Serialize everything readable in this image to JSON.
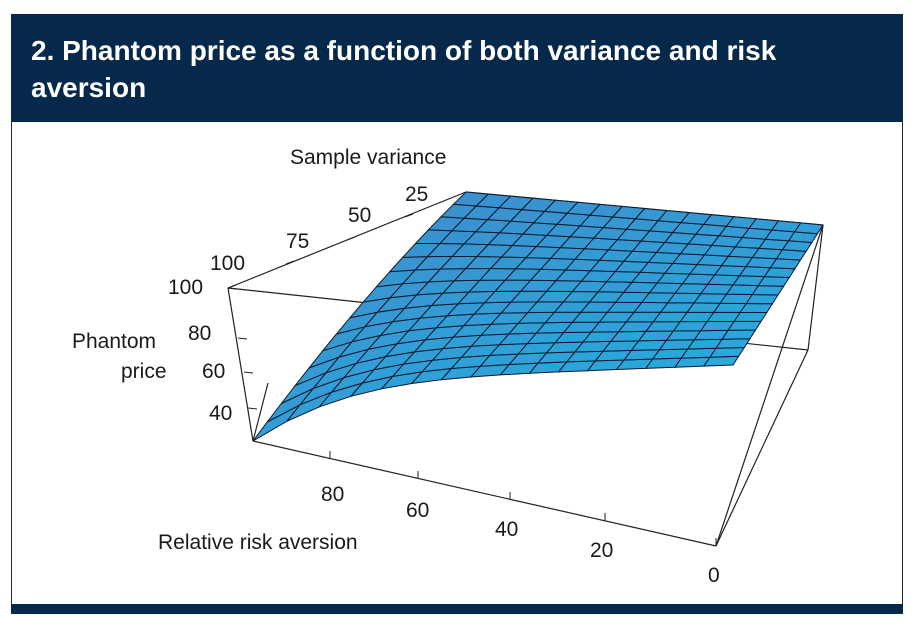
{
  "title": "2. Phantom price as a function of both variance and risk aversion",
  "chart_data": {
    "type": "surface3d",
    "title": "2. Phantom price as a function of both variance and risk aversion",
    "zlabel": [
      "Phantom",
      "price"
    ],
    "ylabel": "Sample variance",
    "xlabel": "Relative risk aversion",
    "z_ticks": [
      "100",
      "80",
      "60",
      "40"
    ],
    "variance_ticks": [
      "100",
      "75",
      "50",
      "25"
    ],
    "risk_ticks": [
      "80",
      "60",
      "40",
      "20",
      "0"
    ],
    "zlim": [
      25,
      100
    ],
    "variance_range": [
      0,
      110
    ],
    "risk_aversion_range": [
      0,
      100
    ],
    "surface_corners": [
      {
        "risk_aversion": 100,
        "variance": 110,
        "price": 29
      },
      {
        "risk_aversion": 100,
        "variance": 0,
        "price": 100
      },
      {
        "risk_aversion": 0,
        "variance": 0,
        "price": 100
      },
      {
        "risk_aversion": 0,
        "variance": 110,
        "price": 100
      }
    ],
    "colors": {
      "surface_light": "#2aa5d8",
      "surface_dark": "#3f7cc0",
      "mesh": "#0d1a2e"
    }
  }
}
